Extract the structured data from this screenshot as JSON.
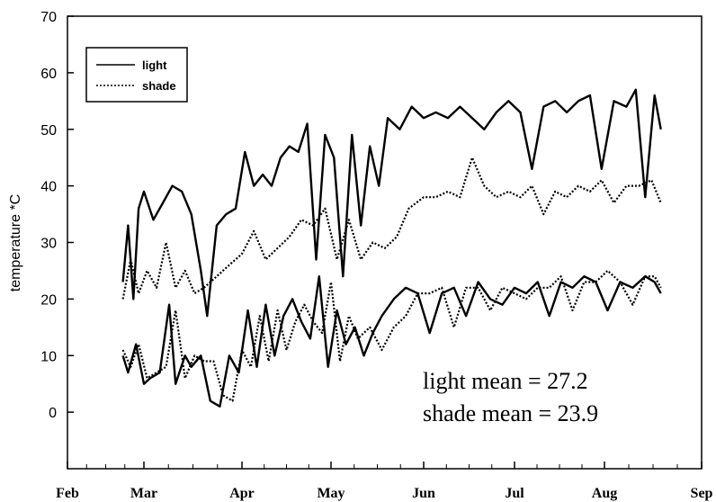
{
  "chart_data": {
    "type": "line",
    "title": "",
    "xlabel": "",
    "ylabel": "temperature *C",
    "ylim": [
      -10,
      70
    ],
    "yticks": [
      0,
      10,
      20,
      30,
      40,
      50,
      60,
      70
    ],
    "x_months": [
      "Feb",
      "Mar",
      "Apr",
      "May",
      "Jun",
      "Jul",
      "Aug",
      "Sep"
    ],
    "legend": {
      "position": "top-left",
      "entries": [
        "light",
        "shade"
      ]
    },
    "annotations": [
      "light mean = 27.2",
      "shade mean = 23.9"
    ],
    "series": [
      {
        "name": "light",
        "style": "solid",
        "kind": "max",
        "x": [
          "2000-02-22",
          "2000-02-24",
          "2000-02-26",
          "2000-02-28",
          "2000-03-01",
          "2000-03-04",
          "2000-03-07",
          "2000-03-10",
          "2000-03-13",
          "2000-03-16",
          "2000-03-19",
          "2000-03-21",
          "2000-03-24",
          "2000-03-27",
          "2000-03-30",
          "2000-04-02",
          "2000-04-05",
          "2000-04-08",
          "2000-04-11",
          "2000-04-14",
          "2000-04-17",
          "2000-04-20",
          "2000-04-23",
          "2000-04-26",
          "2000-04-29",
          "2000-05-02",
          "2000-05-05",
          "2000-05-08",
          "2000-05-11",
          "2000-05-14",
          "2000-05-17",
          "2000-05-20",
          "2000-05-24",
          "2000-05-28",
          "2000-06-01",
          "2000-06-05",
          "2000-06-09",
          "2000-06-13",
          "2000-06-17",
          "2000-06-21",
          "2000-06-25",
          "2000-06-29",
          "2000-07-03",
          "2000-07-07",
          "2000-07-11",
          "2000-07-15",
          "2000-07-19",
          "2000-07-23",
          "2000-07-27",
          "2000-07-31",
          "2000-08-04",
          "2000-08-08",
          "2000-08-11",
          "2000-08-14",
          "2000-08-17",
          "2000-08-19"
        ],
        "values": [
          23,
          33,
          20,
          36,
          39,
          34,
          37,
          40,
          39,
          35,
          25,
          17,
          33,
          35,
          36,
          46,
          40,
          42,
          40,
          45,
          47,
          46,
          51,
          27,
          49,
          45,
          24,
          49,
          33,
          47,
          40,
          52,
          50,
          54,
          52,
          53,
          52,
          54,
          52,
          50,
          53,
          55,
          53,
          43,
          54,
          55,
          53,
          55,
          56,
          43,
          55,
          54,
          57,
          38,
          56,
          50
        ]
      },
      {
        "name": "shade",
        "style": "dotted",
        "kind": "max",
        "x": [
          "2000-02-22",
          "2000-02-25",
          "2000-02-28",
          "2000-03-02",
          "2000-03-05",
          "2000-03-08",
          "2000-03-11",
          "2000-03-14",
          "2000-03-17",
          "2000-03-20",
          "2000-03-24",
          "2000-03-28",
          "2000-04-01",
          "2000-04-05",
          "2000-04-09",
          "2000-04-13",
          "2000-04-17",
          "2000-04-21",
          "2000-04-25",
          "2000-04-29",
          "2000-05-03",
          "2000-05-07",
          "2000-05-11",
          "2000-05-15",
          "2000-05-19",
          "2000-05-23",
          "2000-05-27",
          "2000-06-01",
          "2000-06-05",
          "2000-06-09",
          "2000-06-13",
          "2000-06-17",
          "2000-06-21",
          "2000-06-25",
          "2000-06-29",
          "2000-07-03",
          "2000-07-07",
          "2000-07-11",
          "2000-07-15",
          "2000-07-19",
          "2000-07-23",
          "2000-07-27",
          "2000-07-31",
          "2000-08-04",
          "2000-08-08",
          "2000-08-12",
          "2000-08-16",
          "2000-08-19"
        ],
        "values": [
          20,
          27,
          21,
          25,
          22,
          30,
          22,
          25,
          21,
          22,
          24,
          26,
          28,
          32,
          27,
          29,
          31,
          34,
          33,
          36,
          27,
          34,
          27,
          30,
          29,
          31,
          36,
          38,
          38,
          39,
          38,
          45,
          40,
          38,
          39,
          38,
          40,
          35,
          39,
          38,
          40,
          39,
          41,
          37,
          40,
          40,
          41,
          37
        ]
      },
      {
        "name": "light",
        "style": "solid",
        "kind": "min",
        "x": [
          "2000-02-22",
          "2000-02-24",
          "2000-02-27",
          "2000-03-01",
          "2000-03-03",
          "2000-03-06",
          "2000-03-09",
          "2000-03-11",
          "2000-03-14",
          "2000-03-16",
          "2000-03-19",
          "2000-03-22",
          "2000-03-25",
          "2000-03-28",
          "2000-03-31",
          "2000-04-03",
          "2000-04-06",
          "2000-04-09",
          "2000-04-12",
          "2000-04-15",
          "2000-04-18",
          "2000-04-21",
          "2000-04-24",
          "2000-04-27",
          "2000-04-30",
          "2000-05-03",
          "2000-05-06",
          "2000-05-09",
          "2000-05-12",
          "2000-05-15",
          "2000-05-18",
          "2000-05-22",
          "2000-05-26",
          "2000-05-30",
          "2000-06-03",
          "2000-06-07",
          "2000-06-11",
          "2000-06-15",
          "2000-06-19",
          "2000-06-23",
          "2000-06-27",
          "2000-07-01",
          "2000-07-05",
          "2000-07-09",
          "2000-07-13",
          "2000-07-17",
          "2000-07-21",
          "2000-07-25",
          "2000-07-29",
          "2000-08-02",
          "2000-08-06",
          "2000-08-10",
          "2000-08-14",
          "2000-08-17",
          "2000-08-19"
        ],
        "values": [
          10,
          7,
          12,
          5,
          6,
          7,
          19,
          5,
          10,
          8,
          10,
          2,
          1,
          10,
          7,
          18,
          8,
          19,
          10,
          17,
          20,
          16,
          13,
          24,
          8,
          18,
          12,
          15,
          10,
          14,
          17,
          20,
          22,
          21,
          14,
          21,
          22,
          17,
          23,
          20,
          19,
          22,
          21,
          23,
          17,
          23,
          22,
          24,
          23,
          18,
          23,
          22,
          24,
          23,
          21
        ]
      },
      {
        "name": "shade",
        "style": "dotted",
        "kind": "min",
        "x": [
          "2000-02-22",
          "2000-02-25",
          "2000-02-28",
          "2000-03-02",
          "2000-03-05",
          "2000-03-08",
          "2000-03-11",
          "2000-03-14",
          "2000-03-17",
          "2000-03-20",
          "2000-03-23",
          "2000-03-26",
          "2000-03-29",
          "2000-04-01",
          "2000-04-04",
          "2000-04-07",
          "2000-04-10",
          "2000-04-13",
          "2000-04-16",
          "2000-04-19",
          "2000-04-22",
          "2000-04-25",
          "2000-04-28",
          "2000-05-01",
          "2000-05-04",
          "2000-05-07",
          "2000-05-10",
          "2000-05-14",
          "2000-05-18",
          "2000-05-22",
          "2000-05-26",
          "2000-05-30",
          "2000-06-03",
          "2000-06-07",
          "2000-06-11",
          "2000-06-15",
          "2000-06-19",
          "2000-06-23",
          "2000-06-27",
          "2000-07-01",
          "2000-07-05",
          "2000-07-09",
          "2000-07-13",
          "2000-07-17",
          "2000-07-21",
          "2000-07-25",
          "2000-07-29",
          "2000-08-02",
          "2000-08-06",
          "2000-08-10",
          "2000-08-14",
          "2000-08-17",
          "2000-08-19"
        ],
        "values": [
          11,
          8,
          12,
          6,
          7,
          8,
          18,
          6,
          10,
          9,
          9,
          3,
          2,
          11,
          8,
          17,
          9,
          18,
          11,
          16,
          19,
          16,
          14,
          23,
          9,
          17,
          13,
          15,
          11,
          15,
          17,
          21,
          21,
          22,
          15,
          22,
          22,
          18,
          22,
          21,
          20,
          22,
          22,
          24,
          18,
          23,
          23,
          25,
          23,
          19,
          24,
          24,
          22
        ]
      }
    ]
  }
}
